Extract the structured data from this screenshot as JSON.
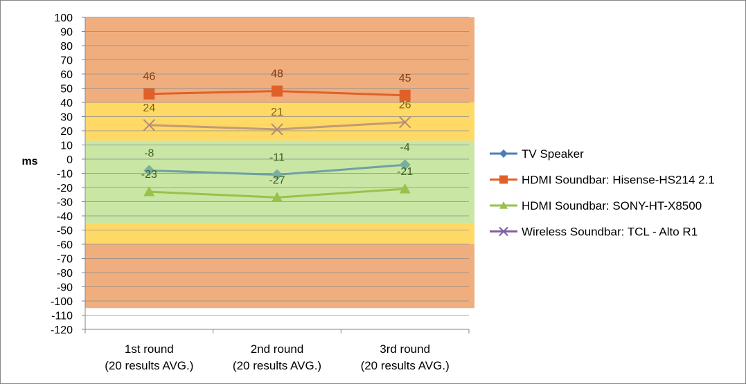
{
  "chart_data": {
    "type": "line",
    "title": "",
    "xlabel": "",
    "ylabel": "ms",
    "ylim": [
      -120,
      100
    ],
    "ytick_step": 10,
    "grid": true,
    "legend_position": "right",
    "categories": [
      [
        "1st round",
        "(20 results AVG.)"
      ],
      [
        "2nd round",
        "(20 results AVG.)"
      ],
      [
        "3rd round",
        "(20 results AVG.)"
      ]
    ],
    "series": [
      {
        "name": "TV Speaker",
        "values": [
          -8,
          -11,
          -4
        ],
        "color": "#4A7EBB",
        "marker": "diamond",
        "label_color": "#3F6022"
      },
      {
        "name": "HDMI Soundbar: Hisense-HS214 2.1",
        "values": [
          46,
          48,
          45
        ],
        "color": "#E0602A",
        "marker": "square",
        "label_color": "#7F3A10"
      },
      {
        "name": "HDMI Soundbar: SONY-HT-X8500",
        "values": [
          -23,
          -27,
          -21
        ],
        "color": "#98C24A",
        "marker": "triangle",
        "label_color": "#3F6022"
      },
      {
        "name": "Wireless Soundbar: TCL - Alto R1",
        "values": [
          24,
          21,
          26
        ],
        "color": "#7E5F9E",
        "marker": "x",
        "label_color": "#7F6010"
      }
    ],
    "display_line_colors": {
      "TV Speaker": "#6FA0A4",
      "HDMI Soundbar: Hisense-HS214 2.1": "#E0602A",
      "HDMI Soundbar: SONY-HT-X8500": "#98C24A",
      "Wireless Soundbar: TCL - Alto R1": "#C39A72"
    },
    "display_marker_colors": {
      "TV Speaker": "#7AAE9E",
      "HDMI Soundbar: Hisense-HS214 2.1": "#E0602A",
      "HDMI Soundbar: SONY-HT-X8500": "#98C24A",
      "Wireless Soundbar: TCL - Alto R1": "#B08C78"
    },
    "background_bands": [
      {
        "from": -105,
        "to": -60,
        "color": "#F0AE7E"
      },
      {
        "from": -60,
        "to": -45,
        "color": "#FFD966"
      },
      {
        "from": -45,
        "to": 13,
        "color": "#C9E6A4"
      },
      {
        "from": 13,
        "to": 40,
        "color": "#FFD966"
      },
      {
        "from": 40,
        "to": 100,
        "color": "#F0AE7E"
      }
    ]
  }
}
